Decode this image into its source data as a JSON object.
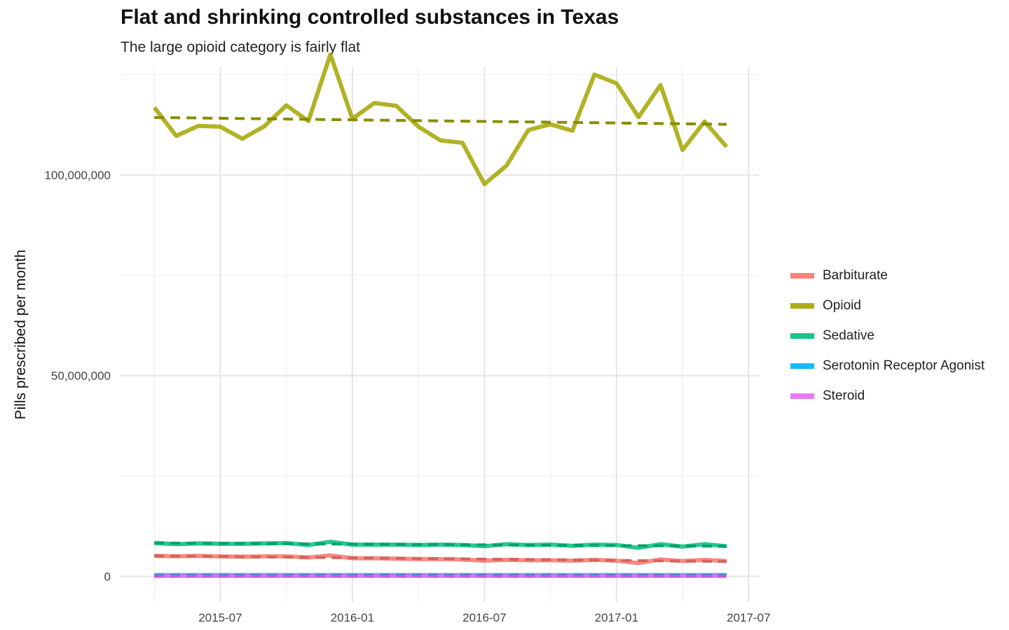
{
  "chart_data": {
    "type": "line",
    "title": "Flat and shrinking controlled substances in Texas",
    "subtitle": "The large opioid category is fairly flat",
    "xlabel": "",
    "ylabel": "Pills prescribed per month",
    "x_ticks": [
      "2015-07",
      "2016-01",
      "2016-07",
      "2017-01",
      "2017-07"
    ],
    "y_ticks": [
      {
        "value": 0,
        "label": "0"
      },
      {
        "value": 50000000,
        "label": "50,000,000"
      },
      {
        "value": 100000000,
        "label": "100,000,000"
      }
    ],
    "xlim": [
      "2015-02-15",
      "2017-07-15"
    ],
    "ylim": [
      -5000000,
      127000000
    ],
    "grid": true,
    "legend_position": "right",
    "trend_lines": "dashed linear trend per series",
    "x": [
      "2015-04",
      "2015-05",
      "2015-06",
      "2015-07",
      "2015-08",
      "2015-09",
      "2015-10",
      "2015-11",
      "2015-12",
      "2016-01",
      "2016-02",
      "2016-03",
      "2016-04",
      "2016-05",
      "2016-06",
      "2016-07",
      "2016-08",
      "2016-09",
      "2016-10",
      "2016-11",
      "2016-12",
      "2017-01",
      "2017-02",
      "2017-03",
      "2017-04",
      "2017-05",
      "2017-06"
    ],
    "series": [
      {
        "name": "Barbiturate",
        "color": "#F8766D",
        "values": [
          5100000,
          5000000,
          5100000,
          5000000,
          4900000,
          5000000,
          5000000,
          4700000,
          5200000,
          4500000,
          4500000,
          4400000,
          4300000,
          4300000,
          4200000,
          3900000,
          4100000,
          4000000,
          4000000,
          3900000,
          4100000,
          3900000,
          3300000,
          4200000,
          3800000,
          4100000,
          3800000
        ],
        "trend": [
          5100000,
          3700000
        ]
      },
      {
        "name": "Opioid",
        "color": "#A3A500",
        "values": [
          116800000,
          109700000,
          112200000,
          112000000,
          109000000,
          112100000,
          117300000,
          113400000,
          130000000,
          114000000,
          117900000,
          117200000,
          112000000,
          108600000,
          108000000,
          97700000,
          102300000,
          111200000,
          112600000,
          111000000,
          125000000,
          122800000,
          114400000,
          122400000,
          106200000,
          113300000,
          107000000
        ],
        "trend": [
          114300000,
          112600000
        ]
      },
      {
        "name": "Sedative",
        "color": "#00BF7D",
        "values": [
          8300000,
          8000000,
          8200000,
          8100000,
          8100000,
          8200000,
          8300000,
          7800000,
          8600000,
          7900000,
          7900000,
          7900000,
          7800000,
          7900000,
          7800000,
          7500000,
          8000000,
          7800000,
          7900000,
          7600000,
          7900000,
          7800000,
          7100000,
          8000000,
          7400000,
          8000000,
          7500000
        ],
        "trend": [
          8300000,
          7500000
        ]
      },
      {
        "name": "Serotonin Receptor Agonist",
        "color": "#00B0F6",
        "values": [
          300000,
          300000,
          300000,
          300000,
          300000,
          300000,
          300000,
          300000,
          300000,
          300000,
          300000,
          300000,
          300000,
          300000,
          300000,
          300000,
          300000,
          300000,
          300000,
          300000,
          300000,
          300000,
          300000,
          300000,
          300000,
          300000,
          300000
        ],
        "trend": [
          300000,
          300000
        ]
      },
      {
        "name": "Steroid",
        "color": "#E76BF3",
        "values": [
          100000,
          100000,
          100000,
          100000,
          100000,
          100000,
          100000,
          100000,
          100000,
          100000,
          100000,
          100000,
          100000,
          100000,
          100000,
          100000,
          100000,
          100000,
          100000,
          100000,
          100000,
          100000,
          100000,
          100000,
          100000,
          100000,
          100000
        ],
        "trend": [
          100000,
          100000
        ]
      }
    ]
  }
}
